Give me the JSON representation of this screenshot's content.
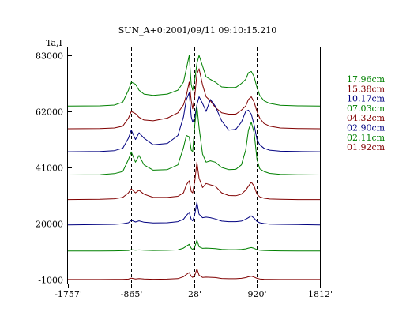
{
  "chart_data": {
    "type": "line",
    "title": "SUN_A+0:2001/09/11 09:10:15.210",
    "ylabel": "Ta,I",
    "x_ticks": [
      "-1757'",
      "-865'",
      "28'",
      "920'",
      "1812'"
    ],
    "x_tick_values": [
      -1757,
      -865,
      28,
      920,
      1812
    ],
    "y_ticks": [
      "83000",
      "62000",
      "41000",
      "20000",
      "-1000"
    ],
    "y_tick_values": [
      83000,
      62000,
      41000,
      20000,
      -1000
    ],
    "xlim": [
      -1757,
      1812
    ],
    "ylim": [
      -2500,
      86000
    ],
    "grid": false,
    "vertical_reference_lines": [
      -865,
      28,
      920
    ],
    "legend_position": "right",
    "x": [
      -1757,
      -1300,
      -1100,
      -980,
      -900,
      -860,
      -800,
      -750,
      -680,
      -550,
      -350,
      -200,
      -120,
      -80,
      -40,
      -10,
      10,
      40,
      70,
      100,
      150,
      200,
      260,
      330,
      420,
      520,
      620,
      700,
      760,
      800,
      840,
      880,
      920,
      960,
      1020,
      1100,
      1250,
      1500,
      1812
    ],
    "series": [
      {
        "name": "17.96cm",
        "color": "#008000",
        "values": [
          64000,
          64100,
          64400,
          65500,
          70000,
          73000,
          72200,
          70000,
          68500,
          68000,
          68500,
          70000,
          73000,
          78000,
          83000,
          72000,
          70000,
          74000,
          80000,
          83000,
          79000,
          75000,
          74000,
          73000,
          71200,
          71000,
          71000,
          72500,
          74000,
          76500,
          77000,
          75000,
          71000,
          68000,
          66000,
          65000,
          64300,
          64100,
          64000
        ]
      },
      {
        "name": "15.38cm",
        "color": "#800000",
        "values": [
          55500,
          55600,
          55800,
          56500,
          59500,
          62000,
          61200,
          59800,
          58800,
          58500,
          59500,
          61500,
          64500,
          68000,
          73000,
          66000,
          63000,
          68000,
          76000,
          78000,
          72000,
          67500,
          66000,
          63500,
          61500,
          61000,
          61000,
          62500,
          64000,
          66500,
          67500,
          65500,
          62000,
          59500,
          57500,
          56500,
          55800,
          55600,
          55500
        ]
      },
      {
        "name": "10.17cm",
        "color": "#000080",
        "values": [
          46900,
          47000,
          47300,
          48200,
          52000,
          55000,
          51500,
          54000,
          52000,
          49500,
          50000,
          53000,
          60000,
          66500,
          69000,
          60000,
          58000,
          60000,
          64500,
          67500,
          65000,
          62000,
          66500,
          64000,
          58500,
          55000,
          55300,
          58000,
          62000,
          62500,
          61000,
          57000,
          51500,
          49500,
          48200,
          47500,
          47100,
          47000,
          46900
        ]
      },
      {
        "name": "07.03cm",
        "color": "#008000",
        "values": [
          38200,
          38300,
          38700,
          39500,
          44000,
          46800,
          43000,
          45500,
          42000,
          40000,
          40200,
          42000,
          48500,
          53000,
          52500,
          47500,
          47000,
          57000,
          64000,
          56000,
          46000,
          43000,
          43500,
          43000,
          41000,
          40200,
          40300,
          42000,
          47500,
          55000,
          58000,
          54000,
          44000,
          40500,
          39500,
          38800,
          38400,
          38300,
          38200
        ]
      },
      {
        "name": "04.32cm",
        "color": "#800000",
        "values": [
          29000,
          29100,
          29300,
          29800,
          31500,
          33000,
          31500,
          32500,
          31000,
          29800,
          29800,
          30200,
          31500,
          34500,
          36000,
          32000,
          31500,
          36000,
          43000,
          37000,
          33500,
          35000,
          34500,
          34000,
          31500,
          30500,
          30400,
          31000,
          32500,
          34000,
          35500,
          34000,
          31000,
          30000,
          29500,
          29200,
          29100,
          29000,
          29000
        ]
      },
      {
        "name": "02.90cm",
        "color": "#000080",
        "values": [
          19500,
          19600,
          19700,
          19900,
          20300,
          21200,
          20600,
          21000,
          20500,
          20200,
          20300,
          20700,
          21600,
          23000,
          24200,
          21500,
          21000,
          23500,
          28000,
          23500,
          22200,
          22400,
          22200,
          21700,
          20900,
          20700,
          20700,
          20900,
          21600,
          22200,
          22900,
          22000,
          20800,
          20300,
          20000,
          19800,
          19700,
          19600,
          19500
        ]
      },
      {
        "name": "02.11cm",
        "color": "#008000",
        "values": [
          9700,
          9720,
          9750,
          9800,
          9900,
          10200,
          10000,
          10100,
          10000,
          9900,
          9950,
          10100,
          10800,
          11500,
          12200,
          10700,
          10300,
          11200,
          13800,
          11300,
          10700,
          10800,
          10700,
          10600,
          10300,
          10200,
          10200,
          10300,
          10500,
          10800,
          11000,
          10700,
          10200,
          10000,
          9900,
          9800,
          9750,
          9720,
          9700
        ]
      },
      {
        "name": "01.92cm",
        "color": "#800000",
        "values": [
          -1000,
          -990,
          -970,
          -930,
          -840,
          -500,
          -780,
          -630,
          -790,
          -900,
          -840,
          -660,
          80,
          900,
          1600,
          250,
          -180,
          600,
          3000,
          650,
          -190,
          -90,
          -150,
          -260,
          -600,
          -700,
          -700,
          -560,
          -280,
          60,
          260,
          -70,
          -560,
          -790,
          -900,
          -960,
          -980,
          -990,
          -1000
        ]
      }
    ]
  }
}
